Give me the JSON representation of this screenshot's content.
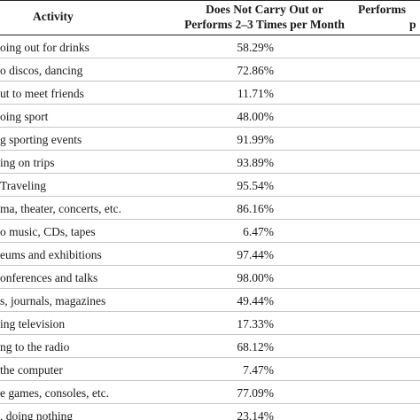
{
  "table": {
    "header": {
      "activity": "Activity",
      "col2_line1": "Does Not Carry Out or",
      "col2_line2": "Performs 2–3 Times per Month",
      "col3_line1": "Performs",
      "col3_line2": "p"
    },
    "rows": [
      {
        "activity": "oing out for drinks",
        "value": "58.29%"
      },
      {
        "activity": "o discos, dancing",
        "value": "72.86%"
      },
      {
        "activity": "ut to meet friends",
        "value": "11.71%"
      },
      {
        "activity": "oing sport",
        "value": "48.00%"
      },
      {
        "activity": "g sporting events",
        "value": "91.99%"
      },
      {
        "activity": "ing on trips",
        "value": "93.89%"
      },
      {
        "activity": "Traveling",
        "value": "95.54%"
      },
      {
        "activity": "ma, theater, concerts, etc.",
        "value": "86.16%"
      },
      {
        "activity": "o music, CDs, tapes",
        "value": "6.47%"
      },
      {
        "activity": "eums and exhibitions",
        "value": "97.44%"
      },
      {
        "activity": "onferences and talks",
        "value": "98.00%"
      },
      {
        "activity": "s, journals, magazines",
        "value": "49.44%"
      },
      {
        "activity": "ing television",
        "value": "17.33%"
      },
      {
        "activity": "ng to the radio",
        "value": "68.12%"
      },
      {
        "activity": " the computer",
        "value": "7.47%"
      },
      {
        "activity": "e games, consoles, etc.",
        "value": "77.09%"
      },
      {
        "activity": ", doing nothing",
        "value": "23.14%"
      }
    ]
  }
}
